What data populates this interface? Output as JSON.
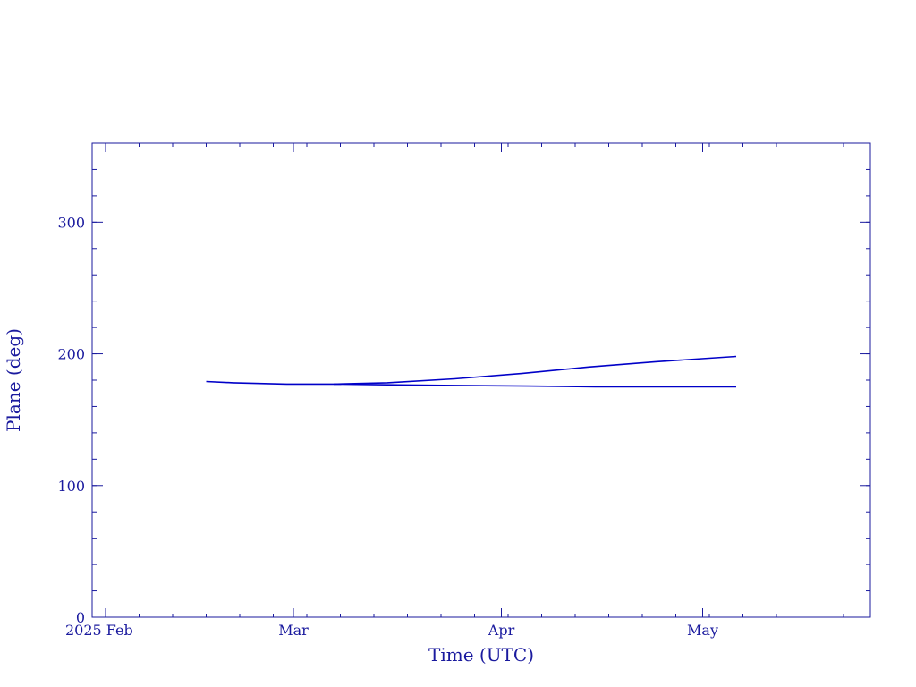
{
  "colors": {
    "axis": "#1a1a9e",
    "line": "#0000c8",
    "background": "#ffffff"
  },
  "chart_data": {
    "type": "line",
    "title": "",
    "xlabel": "Time (UTC)",
    "ylabel": "Plane (deg)",
    "x_is_date": true,
    "xlim": [
      "2025-01-30",
      "2025-05-26"
    ],
    "ylim": [
      0,
      360
    ],
    "x_ticks": [
      {
        "date": "2025-02-01",
        "label": "2025 Feb"
      },
      {
        "date": "2025-03-01",
        "label": "Mar"
      },
      {
        "date": "2025-04-01",
        "label": "Apr"
      },
      {
        "date": "2025-05-01",
        "label": "May"
      }
    ],
    "x_minor_tick_days": 5,
    "y_ticks": [
      {
        "value": 0,
        "label": "0"
      },
      {
        "value": 100,
        "label": "100"
      },
      {
        "value": 200,
        "label": "200"
      },
      {
        "value": 300,
        "label": "300"
      }
    ],
    "y_minor_step": 20,
    "grid": false,
    "series": [
      {
        "x": [
          "2025-02-16",
          "2025-02-20",
          "2025-02-28",
          "2025-03-07",
          "2025-03-15",
          "2025-03-25",
          "2025-04-04",
          "2025-04-14",
          "2025-04-24",
          "2025-05-06"
        ],
        "y": [
          179,
          178,
          177,
          177,
          178,
          181,
          185,
          190,
          194,
          198
        ]
      },
      {
        "x": [
          "2025-03-07",
          "2025-03-15",
          "2025-03-25",
          "2025-04-05",
          "2025-04-15",
          "2025-04-25",
          "2025-05-06"
        ],
        "y": [
          177,
          176.5,
          176,
          175.5,
          175,
          175,
          175
        ]
      }
    ]
  }
}
